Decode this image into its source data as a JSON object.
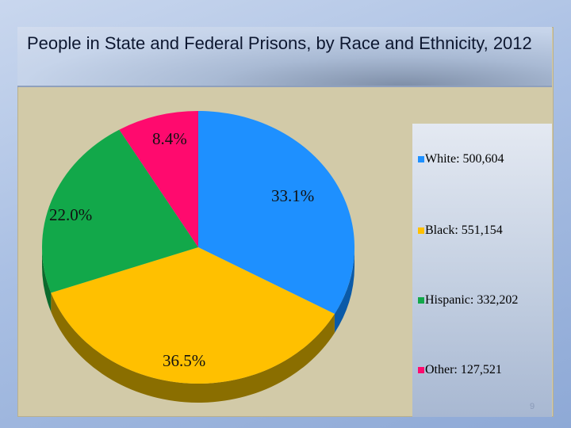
{
  "chart_data": {
    "type": "pie",
    "title": "People in State and Federal Prisons, by Race and Ethnicity, 2012",
    "categories": [
      "White",
      "Black",
      "Hispanic",
      "Other"
    ],
    "values": [
      500604,
      551154,
      332202,
      127521
    ],
    "percent_labels": [
      "33.1%",
      "36.5%",
      "22.0%",
      "8.4%"
    ],
    "legend_labels": [
      "White: 500,604",
      "Black: 551,154",
      "Hispanic: 332,202",
      "Other: 127,521"
    ],
    "colors": [
      "#1e90ff",
      "#ffc000",
      "#12a84a",
      "#ff0a6e"
    ],
    "side_colors": [
      "#0a5aa8",
      "#8a6e00",
      "#0b6a2d",
      "#a0043f"
    ],
    "legend_position": "right"
  },
  "slide": {
    "page_number": "9"
  }
}
